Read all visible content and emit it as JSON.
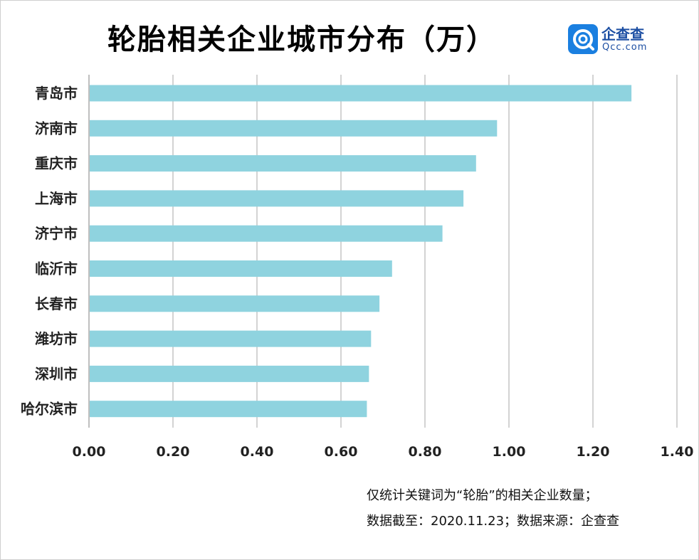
{
  "logo": {
    "text": "企查查",
    "sub": "Qcc.com"
  },
  "footnote": {
    "line1": "仅统计关键词为“轮胎”的相关企业数量；",
    "line2": "数据截至：2020.11.23；数据来源：企查查"
  },
  "colors": {
    "bar": "#8fd3df",
    "grid": "#d3d3d3",
    "axis": "#bfbfbf",
    "logo": "#1d4fa3"
  },
  "chart_data": {
    "type": "bar",
    "orientation": "horizontal",
    "title": "轮胎相关企业城市分布（万）",
    "categories": [
      "青岛市",
      "济南市",
      "重庆市",
      "上海市",
      "济宁市",
      "临沂市",
      "长春市",
      "潍坊市",
      "深圳市",
      "哈尔滨市"
    ],
    "values": [
      1.29,
      0.97,
      0.92,
      0.89,
      0.84,
      0.72,
      0.69,
      0.67,
      0.665,
      0.66
    ],
    "xlim": [
      0,
      1.4
    ],
    "xticks": [
      "0.00",
      "0.20",
      "0.40",
      "0.60",
      "0.80",
      "1.00",
      "1.20",
      "1.40"
    ],
    "grid": true,
    "legend": "none"
  }
}
